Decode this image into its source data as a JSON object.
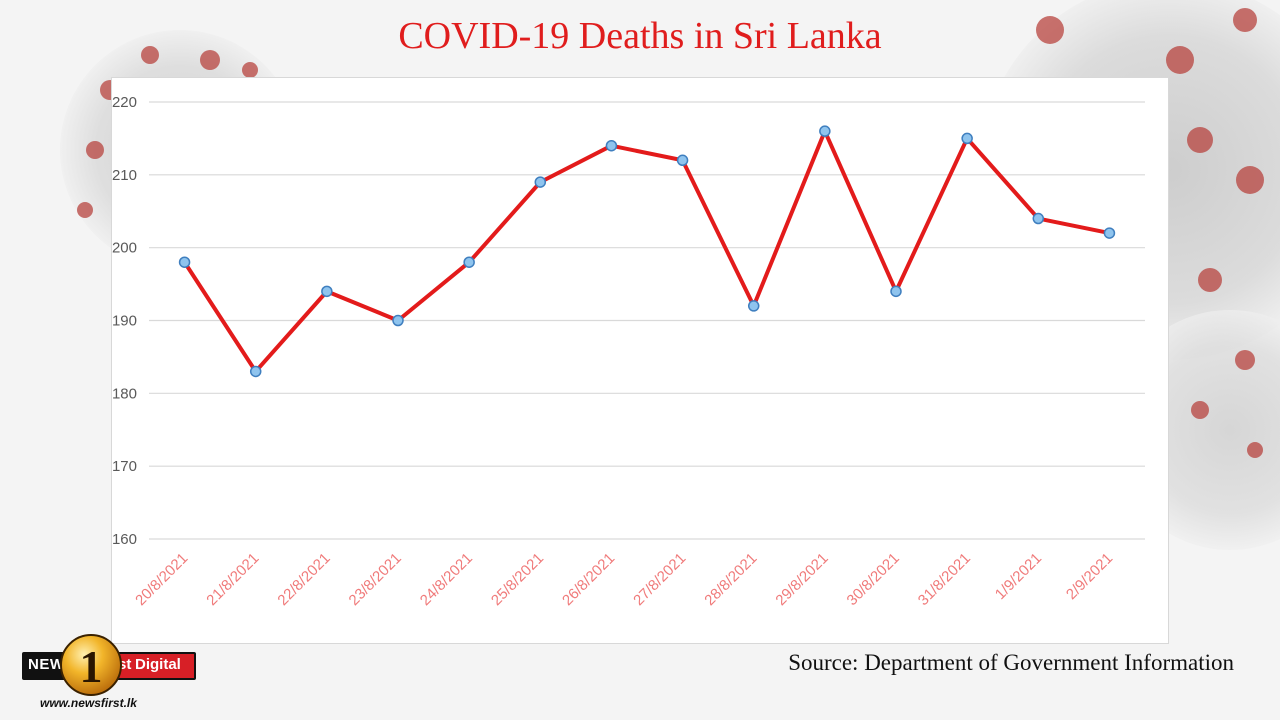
{
  "title": "COVID-19 Deaths in Sri Lanka",
  "source": "Source: Department of Government Information",
  "logo": {
    "news": "NEWS",
    "one": "1",
    "st": "st",
    "digital": "Digital",
    "url": "www.newsfirst.lk"
  },
  "colors": {
    "title": "#e01d1d",
    "line": "#e31b1b",
    "marker_fill": "#8fc4ee",
    "marker_stroke": "#3f7fbf",
    "tick_label_x": "#f07b7b",
    "tick_label_y": "#595959",
    "grid": "#d9d9d9"
  },
  "chart_data": {
    "type": "line",
    "title": "",
    "xlabel": "",
    "ylabel": "",
    "categories": [
      "20/8/2021",
      "21/8/2021",
      "22/8/2021",
      "23/8/2021",
      "24/8/2021",
      "25/8/2021",
      "26/8/2021",
      "27/8/2021",
      "28/8/2021",
      "29/8/2021",
      "30/8/2021",
      "31/8/2021",
      "1/9/2021",
      "2/9/2021"
    ],
    "series": [
      {
        "values": [
          198,
          183,
          194,
          190,
          198,
          209,
          214,
          212,
          192,
          216,
          194,
          215,
          204,
          202
        ]
      }
    ],
    "ylim": [
      160,
      220
    ],
    "yticks": [
      160,
      170,
      180,
      190,
      200,
      210,
      220
    ],
    "grid": true,
    "legend": "none"
  }
}
